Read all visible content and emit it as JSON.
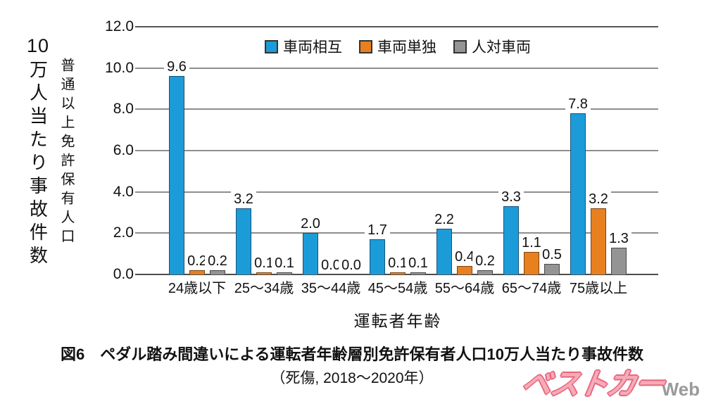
{
  "chart_data": {
    "type": "bar",
    "categories": [
      "24歳以下",
      "25～34歳",
      "35～44歳",
      "45～54歳",
      "55～64歳",
      "65～74歳",
      "75歳以上"
    ],
    "series": [
      {
        "name": "車両相互",
        "color": "#1b9cd8",
        "border_color": "#1a5276",
        "values": [
          9.6,
          3.2,
          2.0,
          1.7,
          2.2,
          3.3,
          7.8
        ]
      },
      {
        "name": "車両単独",
        "color": "#e8801f",
        "border_color": "#7a4410",
        "values": [
          0.2,
          0.1,
          0.0,
          0.1,
          0.4,
          1.1,
          3.2
        ]
      },
      {
        "name": "人対車両",
        "color": "#949494",
        "border_color": "#4a4a4a",
        "values": [
          0.2,
          0.1,
          0.0,
          0.1,
          0.2,
          0.5,
          1.3
        ]
      }
    ],
    "ylim": [
      0,
      12
    ],
    "yticks": [
      "0.0",
      "2.0",
      "4.0",
      "6.0",
      "8.0",
      "10.0",
      "12.0"
    ],
    "xlabel": "運転者年齢",
    "ylabel_primary": {
      "prefix": "10",
      "text": "万人当たり事故件数"
    },
    "ylabel_secondary": "普通以上免許保有人口",
    "grid": true,
    "legend_position": "top",
    "value_labels": true,
    "gridline_color": "#8e8e8e",
    "text_color": "#111111"
  },
  "figure": {
    "number_caption": "図6　ペダル踏み間違いによる運転者年齢層別免許保有者人口10万人当たり事故件数",
    "subcaption": "（死傷, 2018～2020年）"
  },
  "watermark": {
    "brand": "ベストカー",
    "suffix": "Web",
    "brand_color": "#f5acb7",
    "suffix_color": "#9a9a9a"
  }
}
